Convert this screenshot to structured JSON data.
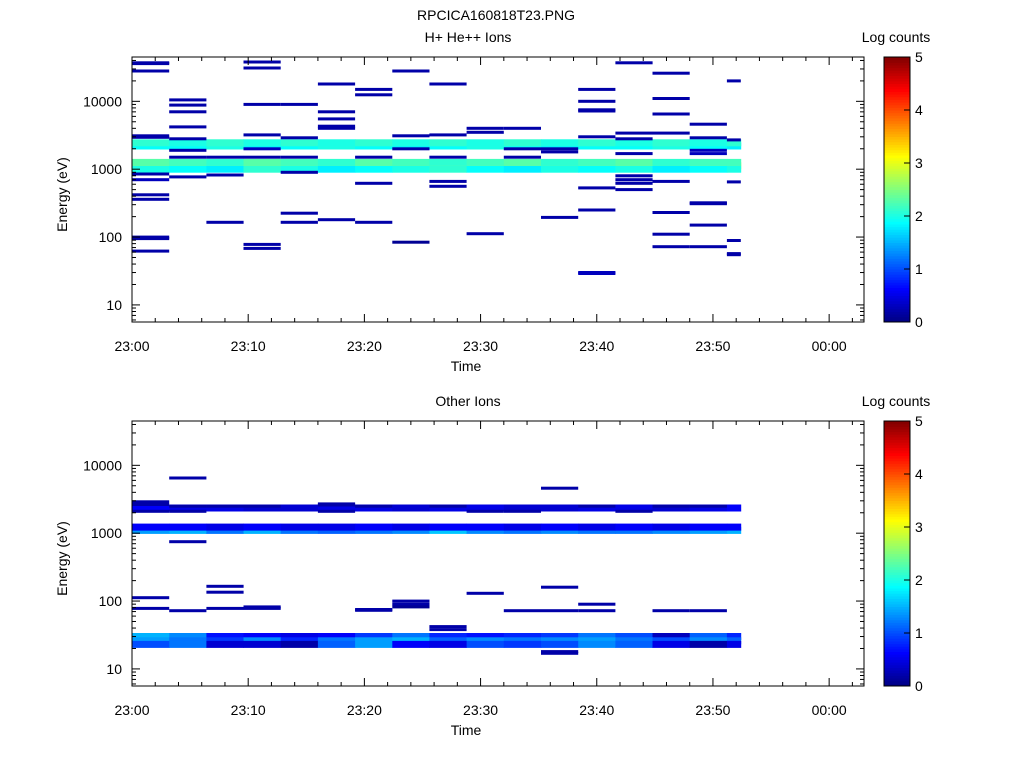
{
  "figure_title": "RPCICA160818T23.PNG",
  "chart_data": [
    {
      "type": "heatmap",
      "title": "H+ He++ Ions",
      "xlabel": "Time",
      "ylabel": "Energy (eV)",
      "x_scale": "time",
      "y_scale": "log",
      "x_range": [
        "23:00",
        "00:03"
      ],
      "y_range": [
        5.6,
        45000
      ],
      "x_ticks": [
        "23:00",
        "23:10",
        "23:20",
        "23:30",
        "23:40",
        "23:50",
        "00:00"
      ],
      "y_ticks": [
        10,
        100,
        1000,
        10000
      ],
      "y_tick_labels": [
        "10",
        "100",
        "1000",
        "10000"
      ],
      "colorbar": {
        "label": "Log counts",
        "range": [
          0,
          5
        ],
        "ticks": [
          "0",
          "1",
          "2",
          "3",
          "4",
          "5"
        ]
      },
      "column_times": [
        "23:00",
        "23:03:12",
        "23:06:24",
        "23:09:36",
        "23:12:48",
        "23:16:00",
        "23:19:12",
        "23:22:24",
        "23:25:36",
        "23:28:48",
        "23:32:00",
        "23:35:12",
        "23:38:24",
        "23:41:36",
        "23:44:48",
        "23:48:00",
        "23:51:12"
      ],
      "column_end": "23:52:24",
      "bands": [
        {
          "e": 1120,
          "v": [
            3.1,
            3.0,
            3.1,
            2.9,
            3.0,
            3.1,
            3.0,
            3.2,
            3.0,
            3.1,
            3.0,
            2.9,
            3.1,
            3.0,
            3.0,
            3.1,
            2.9
          ]
        },
        {
          "e": 1000,
          "v": [
            2.0,
            1.9,
            1.8,
            2.1,
            2.0,
            1.8,
            1.9,
            2.0,
            2.1,
            1.9,
            1.8,
            2.0,
            1.9,
            2.0,
            1.8,
            1.9,
            2.0
          ]
        },
        {
          "e": 1260,
          "v": [
            2.3,
            2.2,
            2.1,
            2.3,
            2.2,
            2.1,
            2.3,
            2.2,
            2.1,
            2.2,
            2.3,
            2.1,
            2.2,
            2.3,
            2.1,
            2.2,
            2.2
          ]
        },
        {
          "e": 2200,
          "v": [
            1.9,
            1.9,
            2.0,
            1.8,
            1.9,
            2.0,
            1.9,
            1.8,
            1.9,
            2.0,
            1.9,
            1.8,
            1.9,
            1.9,
            2.0,
            1.9,
            1.8
          ]
        },
        {
          "e": 2450,
          "v": [
            2.1,
            2.0,
            2.1,
            2.0,
            2.1,
            2.0,
            2.1,
            2.0,
            2.1,
            2.0,
            2.1,
            2.0,
            2.1,
            2.0,
            2.1,
            2.0,
            2.1
          ]
        }
      ],
      "segments": [
        {
          "c": 0,
          "e": 37000,
          "v": 0.2
        },
        {
          "c": 0,
          "e": 36000,
          "v": 0.2
        },
        {
          "c": 0,
          "e": 28000,
          "v": 0.2
        },
        {
          "c": 0,
          "e": 3100,
          "v": 0.2
        },
        {
          "c": 0,
          "e": 2950,
          "v": 0.2
        },
        {
          "c": 0,
          "e": 850,
          "v": 0.2
        },
        {
          "c": 0,
          "e": 700,
          "v": 0.3
        },
        {
          "c": 0,
          "e": 420,
          "v": 0.2
        },
        {
          "c": 0,
          "e": 360,
          "v": 0.2
        },
        {
          "c": 0,
          "e": 100,
          "v": 0.2
        },
        {
          "c": 0,
          "e": 95,
          "v": 0.2
        },
        {
          "c": 0,
          "e": 62,
          "v": 0.2
        },
        {
          "c": 1,
          "e": 10500,
          "v": 0.2
        },
        {
          "c": 1,
          "e": 8800,
          "v": 0.2
        },
        {
          "c": 1,
          "e": 7000,
          "v": 0.2
        },
        {
          "c": 1,
          "e": 4200,
          "v": 0.2
        },
        {
          "c": 1,
          "e": 2800,
          "v": 0.2
        },
        {
          "c": 1,
          "e": 1900,
          "v": 0.2
        },
        {
          "c": 1,
          "e": 1500,
          "v": 0.2
        },
        {
          "c": 1,
          "e": 770,
          "v": 0.2
        },
        {
          "c": 2,
          "e": 1500,
          "v": 0.2
        },
        {
          "c": 2,
          "e": 820,
          "v": 0.2
        },
        {
          "c": 2,
          "e": 165,
          "v": 0.2
        },
        {
          "c": 3,
          "e": 38000,
          "v": 0.2
        },
        {
          "c": 3,
          "e": 31000,
          "v": 0.2
        },
        {
          "c": 3,
          "e": 9000,
          "v": 0.2
        },
        {
          "c": 3,
          "e": 3200,
          "v": 0.2
        },
        {
          "c": 3,
          "e": 2000,
          "v": 0.3
        },
        {
          "c": 3,
          "e": 1500,
          "v": 0.2
        },
        {
          "c": 3,
          "e": 78,
          "v": 0.2
        },
        {
          "c": 3,
          "e": 68,
          "v": 0.2
        },
        {
          "c": 4,
          "e": 9000,
          "v": 0.2
        },
        {
          "c": 4,
          "e": 2900,
          "v": 0.2
        },
        {
          "c": 4,
          "e": 1500,
          "v": 0.2
        },
        {
          "c": 4,
          "e": 900,
          "v": 0.2
        },
        {
          "c": 4,
          "e": 225,
          "v": 0.2
        },
        {
          "c": 4,
          "e": 165,
          "v": 0.2
        },
        {
          "c": 5,
          "e": 18000,
          "v": 0.2
        },
        {
          "c": 5,
          "e": 7000,
          "v": 0.2
        },
        {
          "c": 5,
          "e": 5500,
          "v": 0.2
        },
        {
          "c": 5,
          "e": 4300,
          "v": 0.2
        },
        {
          "c": 5,
          "e": 4000,
          "v": 0.2
        },
        {
          "c": 5,
          "e": 180,
          "v": 0.2
        },
        {
          "c": 6,
          "e": 15000,
          "v": 0.2
        },
        {
          "c": 6,
          "e": 12500,
          "v": 0.2
        },
        {
          "c": 6,
          "e": 1500,
          "v": 0.2
        },
        {
          "c": 6,
          "e": 620,
          "v": 0.2
        },
        {
          "c": 6,
          "e": 165,
          "v": 0.2
        },
        {
          "c": 7,
          "e": 28000,
          "v": 0.2
        },
        {
          "c": 7,
          "e": 3100,
          "v": 0.2
        },
        {
          "c": 7,
          "e": 2000,
          "v": 0.2
        },
        {
          "c": 7,
          "e": 84,
          "v": 0.1
        },
        {
          "c": 8,
          "e": 18000,
          "v": 0.2
        },
        {
          "c": 8,
          "e": 3200,
          "v": 0.2
        },
        {
          "c": 8,
          "e": 1500,
          "v": 0.2
        },
        {
          "c": 8,
          "e": 660,
          "v": 0.2
        },
        {
          "c": 8,
          "e": 560,
          "v": 0.2
        },
        {
          "c": 9,
          "e": 4000,
          "v": 0.2
        },
        {
          "c": 9,
          "e": 3500,
          "v": 0.2
        },
        {
          "c": 9,
          "e": 112,
          "v": 0.2
        },
        {
          "c": 10,
          "e": 4000,
          "v": 0.2
        },
        {
          "c": 10,
          "e": 2000,
          "v": 0.2
        },
        {
          "c": 10,
          "e": 1500,
          "v": 0.2
        },
        {
          "c": 11,
          "e": 2000,
          "v": 0.2
        },
        {
          "c": 11,
          "e": 1800,
          "v": 0.2
        },
        {
          "c": 11,
          "e": 195,
          "v": 0.2
        },
        {
          "c": 12,
          "e": 15000,
          "v": 0.2
        },
        {
          "c": 12,
          "e": 10000,
          "v": 0.2
        },
        {
          "c": 12,
          "e": 7500,
          "v": 0.2
        },
        {
          "c": 12,
          "e": 7200,
          "v": 0.2
        },
        {
          "c": 12,
          "e": 3000,
          "v": 0.2
        },
        {
          "c": 12,
          "e": 530,
          "v": 0.2
        },
        {
          "c": 12,
          "e": 250,
          "v": 0.2
        },
        {
          "c": 12,
          "e": 30,
          "v": 0.3
        },
        {
          "c": 12,
          "e": 29,
          "v": 0.3
        },
        {
          "c": 13,
          "e": 37000,
          "v": 0.2
        },
        {
          "c": 13,
          "e": 3400,
          "v": 0.2
        },
        {
          "c": 13,
          "e": 2800,
          "v": 0.2
        },
        {
          "c": 13,
          "e": 1700,
          "v": 0.2
        },
        {
          "c": 13,
          "e": 800,
          "v": 0.2
        },
        {
          "c": 13,
          "e": 700,
          "v": 0.2
        },
        {
          "c": 13,
          "e": 620,
          "v": 0.2
        },
        {
          "c": 13,
          "e": 500,
          "v": 0.2
        },
        {
          "c": 14,
          "e": 26000,
          "v": 0.2
        },
        {
          "c": 14,
          "e": 11000,
          "v": 0.2
        },
        {
          "c": 14,
          "e": 6500,
          "v": 0.2
        },
        {
          "c": 14,
          "e": 3400,
          "v": 0.2
        },
        {
          "c": 14,
          "e": 660,
          "v": 0.2
        },
        {
          "c": 14,
          "e": 230,
          "v": 0.2
        },
        {
          "c": 14,
          "e": 110,
          "v": 0.2
        },
        {
          "c": 14,
          "e": 72,
          "v": 0.2
        },
        {
          "c": 15,
          "e": 4600,
          "v": 0.2
        },
        {
          "c": 15,
          "e": 2900,
          "v": 0.2
        },
        {
          "c": 15,
          "e": 1900,
          "v": 0.3
        },
        {
          "c": 15,
          "e": 1700,
          "v": 0.3
        },
        {
          "c": 15,
          "e": 320,
          "v": 0.2
        },
        {
          "c": 15,
          "e": 310,
          "v": 0.2
        },
        {
          "c": 15,
          "e": 150,
          "v": 0.2
        },
        {
          "c": 15,
          "e": 72,
          "v": 0.2
        },
        {
          "c": 16,
          "e": 20000,
          "v": 0.2
        },
        {
          "c": 16,
          "e": 2700,
          "v": 0.2
        },
        {
          "c": 16,
          "e": 650,
          "v": 0.2
        },
        {
          "c": 16,
          "e": 89,
          "v": 0.2
        },
        {
          "c": 16,
          "e": 57,
          "v": 0.2
        },
        {
          "c": 16,
          "e": 55,
          "v": 0.2
        }
      ]
    },
    {
      "type": "heatmap",
      "title": "Other Ions",
      "xlabel": "Time",
      "ylabel": "Energy (eV)",
      "x_scale": "time",
      "y_scale": "log",
      "x_range": [
        "23:00",
        "00:03"
      ],
      "y_range": [
        5.6,
        45000
      ],
      "x_ticks": [
        "23:00",
        "23:10",
        "23:20",
        "23:30",
        "23:40",
        "23:50",
        "00:00"
      ],
      "y_ticks": [
        10,
        100,
        1000,
        10000
      ],
      "y_tick_labels": [
        "10",
        "100",
        "1000",
        "10000"
      ],
      "colorbar": {
        "label": "Log counts",
        "range": [
          0,
          5
        ],
        "ticks": [
          "0",
          "1",
          "2",
          "3",
          "4",
          "5"
        ]
      },
      "column_times": [
        "23:00",
        "23:03:12",
        "23:06:24",
        "23:09:36",
        "23:12:48",
        "23:16:00",
        "23:19:12",
        "23:22:24",
        "23:25:36",
        "23:28:48",
        "23:32:00",
        "23:35:12",
        "23:38:24",
        "23:41:36",
        "23:44:48",
        "23:48:00",
        "23:51:12"
      ],
      "column_end": "23:52:24",
      "bands": [
        {
          "e": 2350,
          "v": [
            0.6,
            0.5,
            0.5,
            0.4,
            0.4,
            0.5,
            0.5,
            0.4,
            0.5,
            0.5,
            0.4,
            0.4,
            0.5,
            0.5,
            0.4,
            0.5,
            0.6
          ]
        },
        {
          "e": 1100,
          "v": [
            1.4,
            1.5,
            1.2,
            1.5,
            1.2,
            1.1,
            1.2,
            1.3,
            1.6,
            1.3,
            1.2,
            1.3,
            1.2,
            1.2,
            1.3,
            1.4,
            1.5
          ]
        },
        {
          "e": 1230,
          "v": [
            0.6,
            0.6,
            0.5,
            0.6,
            0.5,
            0.5,
            0.6,
            0.5,
            0.6,
            0.6,
            0.5,
            0.6,
            0.5,
            0.6,
            0.5,
            0.6,
            0.6
          ]
        },
        {
          "e": 30,
          "v": [
            1.5,
            1.3,
            0.7,
            0.6,
            0.5,
            0.6,
            0.9,
            1.2,
            0.8,
            0.7,
            0.8,
            0.9,
            1.2,
            1.0,
            0.3,
            1.1,
            0.8
          ]
        },
        {
          "e": 26,
          "v": [
            1.4,
            1.2,
            0.9,
            1.3,
            0.8,
            1.2,
            1.4,
            1.5,
            1.1,
            1.3,
            1.2,
            1.3,
            1.4,
            1.2,
            1.0,
            1.3,
            1.1
          ]
        },
        {
          "e": 23,
          "v": [
            1.0,
            1.2,
            0.4,
            0.4,
            0.2,
            1.1,
            1.4,
            0.6,
            0.5,
            1.0,
            0.9,
            1.0,
            1.3,
            1.1,
            0.5,
            0.2,
            0.5
          ]
        }
      ],
      "segments": [
        {
          "c": 0,
          "e": 2900,
          "v": 0.2
        },
        {
          "c": 0,
          "e": 2650,
          "v": 0.2
        },
        {
          "c": 0,
          "e": 2100,
          "v": 0.2
        },
        {
          "c": 0,
          "e": 112,
          "v": 0.2
        },
        {
          "c": 0,
          "e": 78,
          "v": 0.2
        },
        {
          "c": 1,
          "e": 6500,
          "v": 0.2
        },
        {
          "c": 1,
          "e": 2500,
          "v": 0.2
        },
        {
          "c": 1,
          "e": 2100,
          "v": 0.2
        },
        {
          "c": 1,
          "e": 750,
          "v": 0.2
        },
        {
          "c": 1,
          "e": 72,
          "v": 0.2
        },
        {
          "c": 2,
          "e": 2500,
          "v": 0.2
        },
        {
          "c": 2,
          "e": 165,
          "v": 0.2
        },
        {
          "c": 2,
          "e": 135,
          "v": 0.2
        },
        {
          "c": 2,
          "e": 78,
          "v": 0.2
        },
        {
          "c": 3,
          "e": 2500,
          "v": 0.2
        },
        {
          "c": 3,
          "e": 82,
          "v": 0.2
        },
        {
          "c": 3,
          "e": 78,
          "v": 0.2
        },
        {
          "c": 5,
          "e": 2700,
          "v": 0.2
        },
        {
          "c": 5,
          "e": 2600,
          "v": 0.2
        },
        {
          "c": 5,
          "e": 2100,
          "v": 0.2
        },
        {
          "c": 6,
          "e": 2500,
          "v": 0.2
        },
        {
          "c": 6,
          "e": 75,
          "v": 0.2
        },
        {
          "c": 6,
          "e": 73,
          "v": 0.2
        },
        {
          "c": 7,
          "e": 100,
          "v": 0.2
        },
        {
          "c": 7,
          "e": 90,
          "v": 0.2
        },
        {
          "c": 7,
          "e": 82,
          "v": 0.1
        },
        {
          "c": 8,
          "e": 2500,
          "v": 0.2
        },
        {
          "c": 8,
          "e": 42,
          "v": 0.2
        },
        {
          "c": 8,
          "e": 38,
          "v": 0.2
        },
        {
          "c": 9,
          "e": 130,
          "v": 0.2
        },
        {
          "c": 9,
          "e": 2100,
          "v": 0.2
        },
        {
          "c": 10,
          "e": 72,
          "v": 0.2
        },
        {
          "c": 10,
          "e": 2100,
          "v": 0.2
        },
        {
          "c": 11,
          "e": 4600,
          "v": 0.2
        },
        {
          "c": 11,
          "e": 160,
          "v": 0.2
        },
        {
          "c": 11,
          "e": 72,
          "v": 0.2
        },
        {
          "c": 11,
          "e": 18,
          "v": 0.2
        },
        {
          "c": 11,
          "e": 17,
          "v": 0.2
        },
        {
          "c": 12,
          "e": 2500,
          "v": 0.2
        },
        {
          "c": 12,
          "e": 90,
          "v": 0.2
        },
        {
          "c": 12,
          "e": 72,
          "v": 0.2
        },
        {
          "c": 13,
          "e": 2100,
          "v": 0.2
        },
        {
          "c": 14,
          "e": 2500,
          "v": 0.2
        },
        {
          "c": 14,
          "e": 72,
          "v": 0.2
        },
        {
          "c": 15,
          "e": 2500,
          "v": 0.2
        },
        {
          "c": 15,
          "e": 72,
          "v": 0.2
        }
      ]
    }
  ]
}
